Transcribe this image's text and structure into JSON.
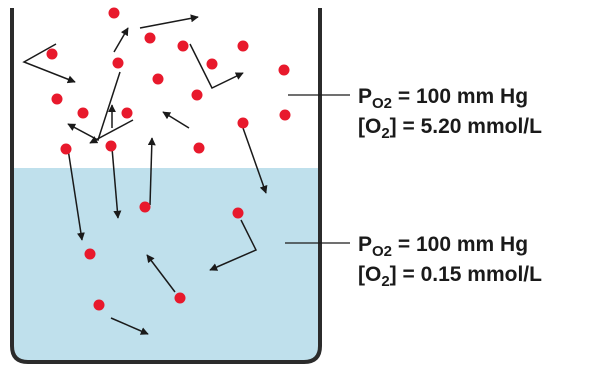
{
  "gas_phase": {
    "pressure": {
      "symbol": "P",
      "subscript": "O2",
      "value": "= 100 mm Hg"
    },
    "concentration": {
      "prefix": "[O",
      "subscript": "2",
      "suffix": "] = 5.20 mmol/L"
    }
  },
  "liquid_phase": {
    "pressure": {
      "symbol": "P",
      "subscript": "O2",
      "value": "= 100 mm Hg"
    },
    "concentration": {
      "prefix": "[O",
      "subscript": "2",
      "suffix": "] = 0.15 mmol/L"
    }
  },
  "colors": {
    "liquid": "#bfe0ec",
    "molecule": "#e8192c",
    "container": "#2b2b2b",
    "arrow": "#1a1a1a"
  }
}
